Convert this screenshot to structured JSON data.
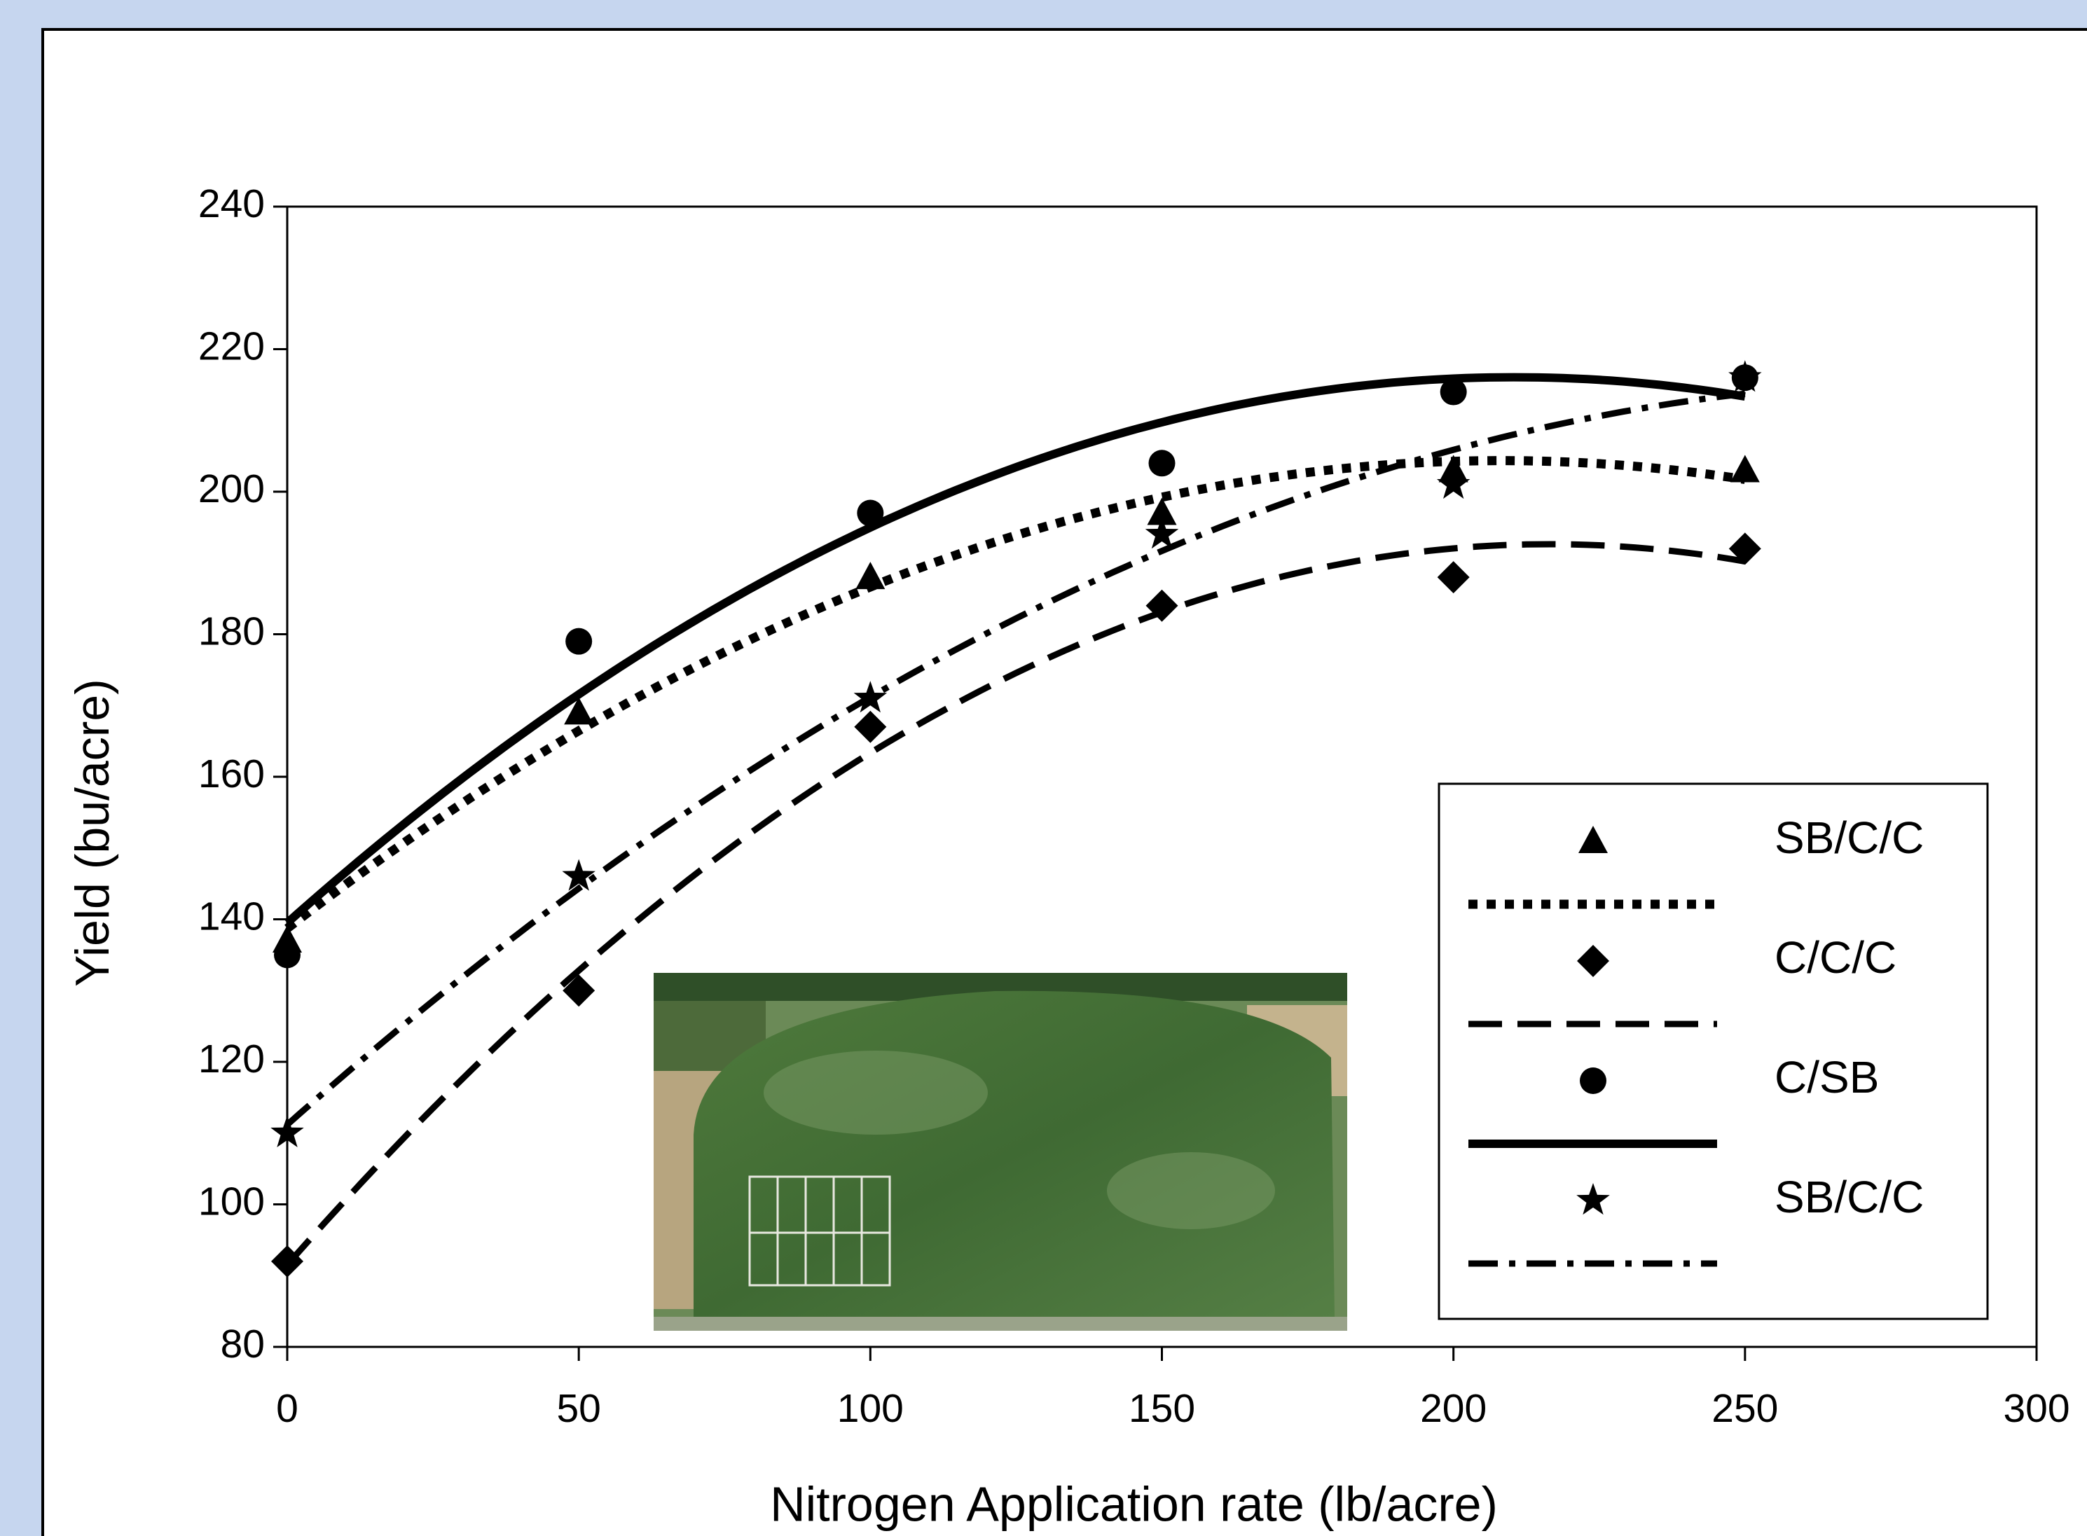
{
  "chart_data": {
    "type": "scatter",
    "xlabel": "Nitrogen Application rate (lb/acre)",
    "ylabel": "Yield (bu/acre)",
    "x": [
      0,
      50,
      100,
      150,
      200,
      250
    ],
    "xlim": [
      0,
      300
    ],
    "xticks": [
      0,
      50,
      100,
      150,
      200,
      250,
      300
    ],
    "ylim": [
      80,
      240
    ],
    "yticks": [
      80,
      100,
      120,
      140,
      160,
      180,
      200,
      220,
      240
    ],
    "trendline": "quadratic",
    "series": [
      {
        "name": "SB/C/C",
        "color": "#000000",
        "marker": "triangle",
        "line_style": "dotted",
        "values": [
          137,
          169,
          188,
          197,
          203,
          203
        ]
      },
      {
        "name": "C/C/C",
        "color": "#000000",
        "marker": "diamond",
        "line_style": "dashed",
        "values": [
          92,
          130,
          167,
          184,
          188,
          192
        ]
      },
      {
        "name": "C/SB",
        "color": "#000000",
        "marker": "circle",
        "line_style": "solid",
        "values": [
          135,
          179,
          197,
          204,
          214,
          216
        ]
      },
      {
        "name": "SB/C/C",
        "color": "#000000",
        "marker": "star",
        "line_style": "dashdot",
        "values": [
          110,
          146,
          171,
          194,
          201,
          216
        ]
      }
    ]
  }
}
